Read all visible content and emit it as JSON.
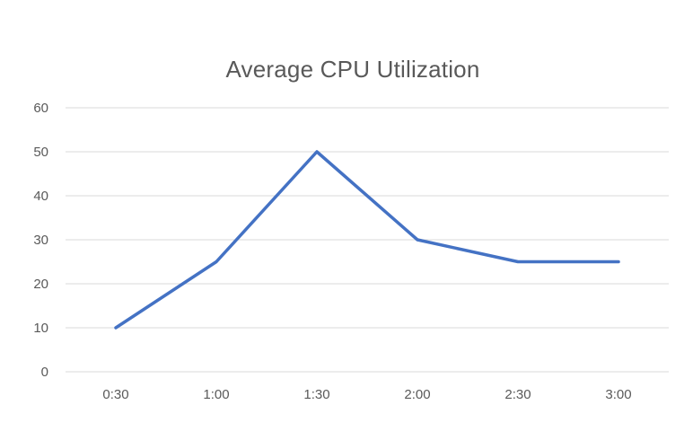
{
  "chart_data": {
    "type": "line",
    "title": "Average CPU Utilization",
    "xlabel": "",
    "ylabel": "",
    "categories": [
      "0:30",
      "1:00",
      "1:30",
      "2:00",
      "2:30",
      "3:00"
    ],
    "series": [
      {
        "values": [
          10,
          25,
          50,
          30,
          25,
          25
        ]
      }
    ],
    "ylim": [
      0,
      60
    ],
    "yticks": [
      0,
      10,
      20,
      30,
      40,
      50,
      60
    ],
    "grid": true,
    "legend": "none",
    "colors": {
      "line": "#4472C4",
      "grid": "#D9D9D9",
      "tick_text": "#595959",
      "title_text": "#595959"
    }
  }
}
